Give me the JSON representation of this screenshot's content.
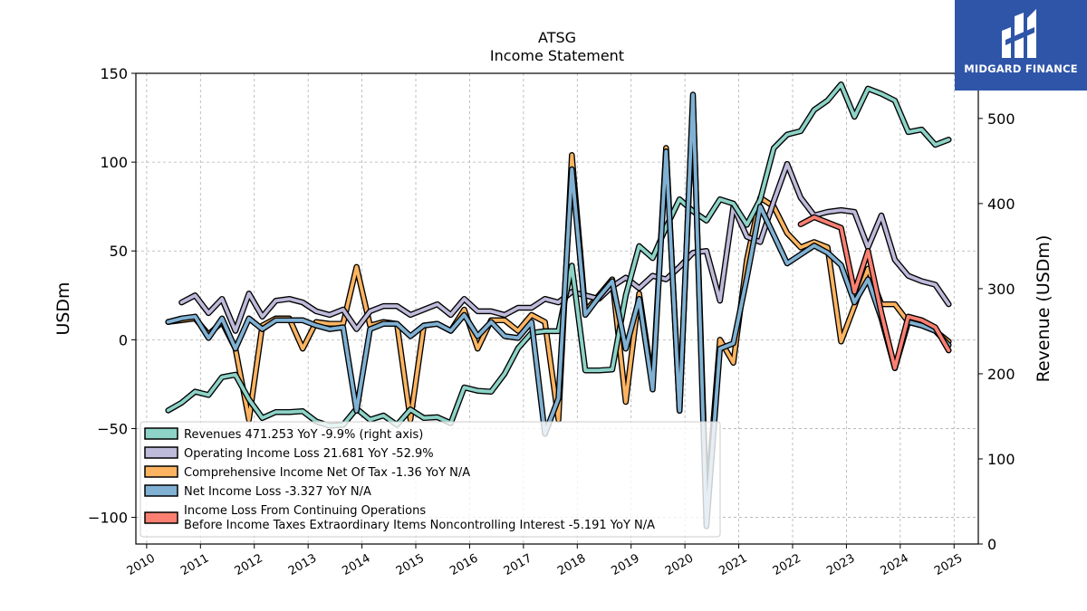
{
  "chart_data": {
    "type": "line",
    "title": "ATSG",
    "subtitle": "Income Statement",
    "ylabel": "USDm",
    "y2label": "Revenue (USDm)",
    "ylim": [
      -115,
      150
    ],
    "y2lim": [
      0,
      553
    ],
    "xlim": [
      2009.8,
      2025.45
    ],
    "yticks": [
      -100,
      -50,
      0,
      50,
      100,
      150
    ],
    "yticklabels": [
      "−100",
      "−50",
      "0",
      "50",
      "100",
      "150"
    ],
    "y2ticks": [
      0,
      100,
      200,
      300,
      400,
      500
    ],
    "xticks": [
      "2010",
      "2011",
      "2012",
      "2013",
      "2014",
      "2015",
      "2016",
      "2017",
      "2018",
      "2019",
      "2020",
      "2021",
      "2022",
      "2023",
      "2024",
      "2025"
    ],
    "grid": true,
    "legend_placement": "lower-left",
    "series": [
      {
        "name": "Revenues",
        "legend": "Revenues  471.253 YoY -9.9% (right axis)",
        "axis": "right",
        "color": "#8dd3c7",
        "x": [
          2010.4,
          2010.65,
          2010.9,
          2011.15,
          2011.4,
          2011.65,
          2011.9,
          2012.15,
          2012.4,
          2012.65,
          2012.9,
          2013.15,
          2013.4,
          2013.65,
          2013.9,
          2014.15,
          2014.4,
          2014.65,
          2014.9,
          2015.15,
          2015.4,
          2015.65,
          2015.9,
          2016.15,
          2016.4,
          2016.65,
          2016.9,
          2017.15,
          2017.4,
          2017.65,
          2017.9,
          2018.15,
          2018.4,
          2018.65,
          2018.9,
          2019.15,
          2019.4,
          2019.65,
          2019.9,
          2020.15,
          2020.4,
          2020.65,
          2020.9,
          2021.15,
          2021.4,
          2021.65,
          2021.9,
          2022.15,
          2022.4,
          2022.65,
          2022.9,
          2023.15,
          2023.4,
          2023.65,
          2023.9,
          2024.15,
          2024.4,
          2024.65,
          2024.9
        ],
        "values": [
          157,
          166,
          179,
          175,
          196,
          199,
          170,
          148,
          155,
          155,
          156,
          144,
          139,
          140,
          159,
          146,
          151,
          140,
          158,
          148,
          149,
          142,
          184,
          180,
          179,
          200,
          230,
          248,
          250,
          250,
          327,
          204,
          204,
          205,
          292,
          350,
          336,
          372,
          405,
          391,
          380,
          405,
          400,
          375,
          405,
          465,
          481,
          485,
          510,
          521,
          540,
          502,
          535,
          529,
          521,
          484,
          487,
          469,
          475
        ],
        "role": "line"
      },
      {
        "name": "Operating Income Loss",
        "legend": "Operating Income Loss  21.681 YoY -52.9%",
        "axis": "left",
        "color": "#bebada",
        "x": [
          2010.65,
          2010.9,
          2011.15,
          2011.4,
          2011.65,
          2011.9,
          2012.15,
          2012.4,
          2012.65,
          2012.9,
          2013.15,
          2013.4,
          2013.65,
          2013.9,
          2014.15,
          2014.4,
          2014.65,
          2014.9,
          2015.15,
          2015.4,
          2015.65,
          2015.9,
          2016.15,
          2016.4,
          2016.65,
          2016.9,
          2017.15,
          2017.4,
          2017.65,
          2017.9,
          2018.15,
          2018.4,
          2018.65,
          2018.9,
          2019.15,
          2019.4,
          2019.65,
          2019.9,
          2020.15,
          2020.4,
          2020.65,
          2020.9,
          2021.15,
          2021.4,
          2021.65,
          2021.9,
          2022.15,
          2022.4,
          2022.65,
          2022.9,
          2023.15,
          2023.4,
          2023.65,
          2023.9,
          2024.15,
          2024.4,
          2024.65,
          2024.9
        ],
        "values": [
          21,
          25,
          15,
          23,
          5,
          26,
          13,
          22,
          23,
          21,
          16,
          14,
          17,
          6,
          16,
          19,
          19,
          14,
          17,
          20,
          14,
          23,
          16,
          16,
          14,
          18,
          18,
          23,
          21,
          27,
          25,
          23,
          30,
          35,
          29,
          36,
          34,
          41,
          49,
          50,
          22,
          75,
          58,
          55,
          78,
          99,
          80,
          70,
          72,
          73,
          72,
          52,
          70,
          45,
          36,
          33,
          31,
          20
        ],
        "role": "line"
      },
      {
        "name": "Comprehensive Income Net Of Tax",
        "legend": "Comprehensive Income Net Of Tax  -1.36 YoY N/A",
        "axis": "left",
        "color": "#fdb462",
        "x": [
          2010.4,
          2010.65,
          2010.9,
          2011.15,
          2011.4,
          2011.65,
          2011.9,
          2012.15,
          2012.4,
          2012.65,
          2012.9,
          2013.15,
          2013.4,
          2013.65,
          2013.9,
          2014.15,
          2014.4,
          2014.65,
          2014.9,
          2015.15,
          2015.4,
          2015.65,
          2015.9,
          2016.15,
          2016.4,
          2016.65,
          2016.9,
          2017.15,
          2017.4,
          2017.65,
          2017.9,
          2018.15,
          2018.4,
          2018.65,
          2018.9,
          2019.15,
          2019.4,
          2019.65,
          2019.9,
          2020.15,
          2020.4,
          2020.65,
          2020.9,
          2021.15,
          2021.4,
          2021.65,
          2021.9,
          2022.15,
          2022.4,
          2022.65,
          2022.9,
          2023.15,
          2023.4,
          2023.65,
          2023.9,
          2024.15,
          2024.4,
          2024.65,
          2024.9
        ],
        "values": [
          10,
          11,
          12,
          3,
          10,
          -5,
          -45,
          8,
          12,
          12,
          -5,
          10,
          9,
          9,
          41,
          8,
          10,
          9,
          -45,
          8,
          9,
          5,
          17,
          -5,
          11,
          11,
          5,
          14,
          10,
          -45,
          104,
          16,
          25,
          34,
          -35,
          26,
          -25,
          108,
          -40,
          135,
          -95,
          0,
          -13,
          45,
          80,
          75,
          60,
          52,
          55,
          52,
          -1,
          19,
          40,
          20,
          20,
          10,
          8,
          5,
          -1
        ],
        "role": "line"
      },
      {
        "name": "Net Income Loss",
        "legend": "Net Income Loss  -3.327 YoY N/A",
        "axis": "left",
        "color": "#80b1d3",
        "x": [
          2010.4,
          2010.65,
          2010.9,
          2011.15,
          2011.4,
          2011.65,
          2011.9,
          2012.15,
          2012.4,
          2012.65,
          2012.9,
          2013.15,
          2013.4,
          2013.65,
          2013.9,
          2014.15,
          2014.4,
          2014.65,
          2014.9,
          2015.15,
          2015.4,
          2015.65,
          2015.9,
          2016.15,
          2016.4,
          2016.65,
          2016.9,
          2017.15,
          2017.4,
          2017.65,
          2017.9,
          2018.15,
          2018.4,
          2018.65,
          2018.9,
          2019.15,
          2019.4,
          2019.65,
          2019.9,
          2020.15,
          2020.4,
          2020.65,
          2020.9,
          2021.15,
          2021.4,
          2021.65,
          2021.9,
          2022.15,
          2022.4,
          2022.65,
          2022.9,
          2023.15,
          2023.4,
          2023.65,
          2023.9,
          2024.15,
          2024.4,
          2024.65,
          2024.9
        ],
        "values": [
          10,
          12,
          13,
          1,
          12,
          -5,
          12,
          6,
          11,
          11,
          11,
          8,
          6,
          7,
          -40,
          6,
          9,
          9,
          2,
          8,
          9,
          5,
          14,
          2,
          10,
          2,
          1,
          10,
          -53,
          -33,
          96,
          14,
          24,
          33,
          -5,
          23,
          -28,
          106,
          -40,
          138,
          -105,
          -5,
          -2,
          35,
          75,
          59,
          43,
          48,
          53,
          49,
          42,
          21,
          34,
          12,
          -16,
          10,
          8,
          5,
          -3
        ],
        "role": "line"
      },
      {
        "name": "Income Loss From Continuing Operations Before Income Taxes Extraordinary Items Noncontrolling Interest",
        "legend_line1": "Income Loss From Continuing Operations",
        "legend_line2": "Before Income Taxes Extraordinary Items Noncontrolling Interest  -5.191 YoY N/A",
        "axis": "left",
        "color": "#fb8072",
        "x": [
          2022.15,
          2022.4,
          2022.65,
          2022.9,
          2023.15,
          2023.4,
          2023.65,
          2023.9,
          2024.15,
          2024.4,
          2024.65,
          2024.9
        ],
        "values": [
          65,
          69,
          66,
          63,
          27,
          50,
          15,
          -16,
          13,
          11,
          7,
          -6
        ],
        "role": "line"
      }
    ]
  },
  "brand": {
    "name": "MIDGARD FINANCE",
    "color": "#2f55a8"
  }
}
